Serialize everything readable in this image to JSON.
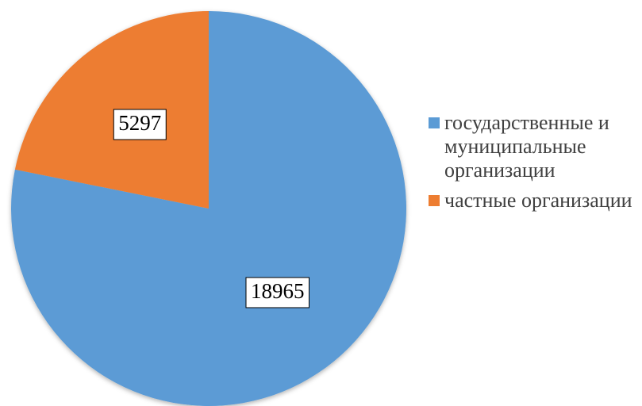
{
  "chart_data": {
    "type": "pie",
    "categories": [
      "государственные и муниципальные организации",
      "частные организации"
    ],
    "values": [
      18965,
      5297
    ],
    "colors": [
      "#5b9bd5",
      "#ed7d31"
    ],
    "legend": "right"
  }
}
